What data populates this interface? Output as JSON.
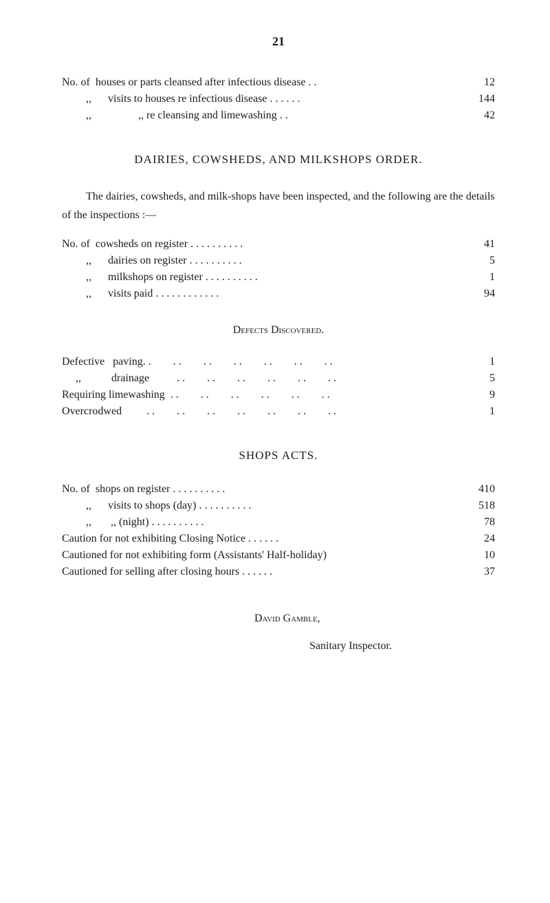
{
  "page_number": "21",
  "top_stats": [
    {
      "prefix": "No. of",
      "label": "houses or parts cleansed after infectious disease . .",
      "value": "12"
    },
    {
      "prefix": ",,",
      "label": "visits to houses re infectious disease . .         . .         . .",
      "value": "144"
    },
    {
      "prefix": ",,",
      "label": ",,             re cleansing and limewashing      . .",
      "value": "42"
    }
  ],
  "section1": {
    "heading": "DAIRIES, COWSHEDS, AND MILKSHOPS ORDER.",
    "paragraph": "The dairies, cowsheds, and milk-shops have been inspected, and the following are the details of the inspections :—",
    "stats": [
      {
        "prefix": "No. of",
        "label": "cowsheds on register       . .        . .        . .        . .        . .",
        "value": "41"
      },
      {
        "prefix": ",,",
        "label": "dairies on register            . .        . .        . .        . .        . .",
        "value": "5"
      },
      {
        "prefix": ",,",
        "label": "milkshops on register  . .        . .        . .        . .        . .",
        "value": "1"
      },
      {
        "prefix": ",,",
        "label": "visits paid             . .        . .        . .        . .        . .        . .",
        "value": "94"
      }
    ]
  },
  "defects": {
    "heading": "Defects Discovered.",
    "stats": [
      {
        "label": "Defective   paving. .        . .        . .        . .        . .        . .        . .",
        "value": "1"
      },
      {
        "label": "     ,,           drainage          . .        . .        . .        . .        . .        . .",
        "value": "5"
      },
      {
        "label": "Requiring limewashing  . .        . .        . .        . .        . .        . .",
        "value": "9"
      },
      {
        "label": "Overcrodwed         . .        . .        . .        . .        . .        . .        . .",
        "value": "1"
      }
    ]
  },
  "section2": {
    "heading": "SHOPS ACTS.",
    "stats": [
      {
        "prefix": "No. of",
        "label": "shops on register             . .        . .        . .        . .        . .",
        "value": "410"
      },
      {
        "prefix": ",,",
        "label": "visits to shops (day)      . .        . .        . .        . .        . .",
        "value": "518"
      },
      {
        "prefix": ",,",
        "label": "         ,,              (night)  . .       . .        . .        . .        . .",
        "value": "78"
      },
      {
        "label": "Caution for not exhibiting Closing Notice   . .        . .        . .",
        "value": "24"
      },
      {
        "label": "Cautioned for not exhibiting form (Assistants' Half-holiday)",
        "value": "10"
      },
      {
        "label": "Cautioned for selling after closing hours       . .        . .        . .",
        "value": "37"
      }
    ]
  },
  "signature": {
    "name": "David Gamble,",
    "title": "Sanitary Inspector."
  }
}
